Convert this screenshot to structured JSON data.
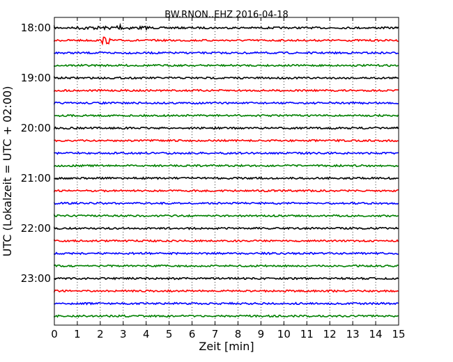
{
  "chart_data": {
    "type": "line",
    "title": "BW.RNON..EHZ 2016-04-18",
    "xlabel": "Zeit  [min]",
    "ylabel": "UTC (Lokalzeit = UTC + 02:00)",
    "xlim": [
      0,
      15
    ],
    "x_ticks": [
      "0",
      "1",
      "2",
      "3",
      "4",
      "5",
      "6",
      "7",
      "8",
      "9",
      "10",
      "11",
      "12",
      "13",
      "14",
      "15"
    ],
    "y_tick_labels": [
      "18:00",
      "19:00",
      "20:00",
      "21:00",
      "22:00",
      "23:00"
    ],
    "trace_colors": [
      "#000000",
      "#ff0000",
      "#0000ff",
      "#008000"
    ],
    "grid": "vertical dotted",
    "traces": [
      {
        "time": "18:00",
        "color": "#000000"
      },
      {
        "time": "18:15",
        "color": "#ff0000"
      },
      {
        "time": "18:30",
        "color": "#0000ff"
      },
      {
        "time": "18:45",
        "color": "#008000"
      },
      {
        "time": "19:00",
        "color": "#000000"
      },
      {
        "time": "19:15",
        "color": "#ff0000"
      },
      {
        "time": "19:30",
        "color": "#0000ff"
      },
      {
        "time": "19:45",
        "color": "#008000"
      },
      {
        "time": "20:00",
        "color": "#000000"
      },
      {
        "time": "20:15",
        "color": "#ff0000"
      },
      {
        "time": "20:30",
        "color": "#0000ff"
      },
      {
        "time": "20:45",
        "color": "#008000"
      },
      {
        "time": "21:00",
        "color": "#000000"
      },
      {
        "time": "21:15",
        "color": "#ff0000"
      },
      {
        "time": "21:30",
        "color": "#0000ff"
      },
      {
        "time": "21:45",
        "color": "#008000"
      },
      {
        "time": "22:00",
        "color": "#000000"
      },
      {
        "time": "22:15",
        "color": "#ff0000"
      },
      {
        "time": "22:30",
        "color": "#0000ff"
      },
      {
        "time": "22:45",
        "color": "#008000"
      },
      {
        "time": "23:00",
        "color": "#000000"
      },
      {
        "time": "23:15",
        "color": "#ff0000"
      },
      {
        "time": "23:30",
        "color": "#0000ff"
      },
      {
        "time": "23:45",
        "color": "#008000"
      }
    ]
  }
}
